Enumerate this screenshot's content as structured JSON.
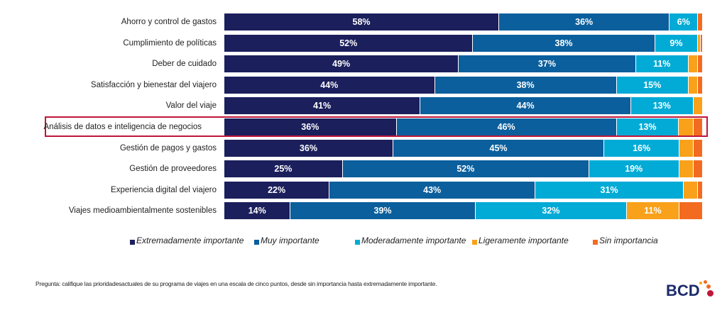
{
  "chart_data": {
    "type": "bar",
    "orientation": "horizontal",
    "stacked": true,
    "categories": [
      "Ahorro y control de gastos",
      "Cumplimiento de políticas",
      "Deber de cuidado",
      "Satisfacción y bienestar del viajero",
      "Valor del viaje",
      "Análisis de datos e inteligencia de negocios",
      "Gestión de pagos y gastos",
      "Gestión de proveedores",
      "Experiencia digital del viajero",
      "Viajes medioambientalmente sostenibles"
    ],
    "series": [
      {
        "name": "Extremadamente importante",
        "color": "#1b1f5c",
        "values": [
          58,
          52,
          49,
          44,
          41,
          36,
          36,
          25,
          22,
          14
        ]
      },
      {
        "name": "Muy importante",
        "color": "#0b5f9c",
        "values": [
          36,
          38,
          37,
          38,
          44,
          46,
          45,
          52,
          43,
          39
        ]
      },
      {
        "name": "Moderadamente importante",
        "color": "#02abd6",
        "values": [
          6,
          9,
          11,
          15,
          13,
          13,
          16,
          19,
          31,
          32
        ]
      },
      {
        "name": "Ligeramente importante",
        "color": "#f9a11b",
        "values": [
          0,
          0.5,
          2,
          2,
          2,
          3,
          3,
          3,
          3,
          11
        ]
      },
      {
        "name": "Sin importancia",
        "color": "#f26b21",
        "values": [
          1,
          0.5,
          1,
          1,
          0,
          2,
          2,
          2,
          1,
          5
        ]
      }
    ],
    "labeled_series": [
      0,
      1,
      2
    ],
    "labeled_values_light": [
      null,
      null,
      null,
      null,
      null,
      null,
      null,
      null,
      null,
      "11%"
    ],
    "highlighted_category": "Análisis de datos e inteligencia de negocios",
    "highlight_color": "#c0163a",
    "xlim": [
      0,
      100
    ],
    "legend_position": "bottom"
  },
  "footnote": "Pregunta: califique las prioridadesactuales de su programa de viajes en una escala de cinco puntos, desde sin importancia hasta extremadamente importante.",
  "logo": {
    "text": "BCD",
    "colors": [
      "#f9a11b",
      "#f26b21",
      "#c0163a"
    ]
  }
}
